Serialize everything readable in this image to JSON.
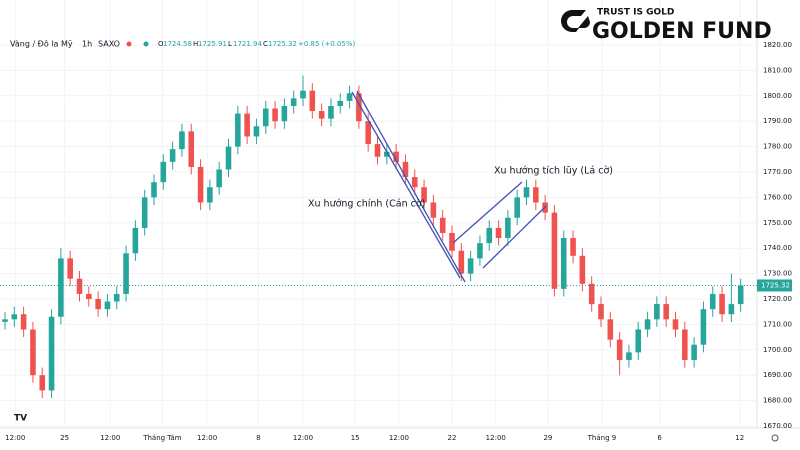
{
  "header": {
    "symbol": "Vàng / Đô la Mỹ",
    "interval": "1h",
    "source": "SAXO",
    "ohlc_labels": [
      "O",
      "H",
      "L",
      "C"
    ],
    "ohlc_values": [
      1724.58,
      1725.91,
      1721.94,
      1725.32
    ],
    "change": "+0.85 (+0.05%)"
  },
  "logo": {
    "tagline": "TRUST IS GOLD",
    "name": "GOLDEN FUND"
  },
  "chart_data": {
    "type": "candlestick",
    "annotations": [
      "Xu hướng chính (Cán cờ)",
      "Xu hướng tích lũy (Lá cờ)"
    ],
    "last_price": 1725.32,
    "up_color": "#26a69a",
    "down_color": "#ef5350",
    "grid": true,
    "xlim": [
      0,
      80
    ],
    "xticks": [
      {
        "value": 1.1,
        "label": "12:00"
      },
      {
        "value": 6.4,
        "label": "25"
      },
      {
        "value": 11.3,
        "label": "12:00"
      },
      {
        "value": 16.9,
        "label": "Tháng Tám"
      },
      {
        "value": 21.7,
        "label": "12:00"
      },
      {
        "value": 27.2,
        "label": "8"
      },
      {
        "value": 32,
        "label": "12:00"
      },
      {
        "value": 37.6,
        "label": "15"
      },
      {
        "value": 42.3,
        "label": "12:00"
      },
      {
        "value": 48,
        "label": "22"
      },
      {
        "value": 52.7,
        "label": "12:00"
      },
      {
        "value": 58.3,
        "label": "29"
      },
      {
        "value": 64.1,
        "label": "Tháng 9"
      },
      {
        "value": 70.3,
        "label": "6"
      },
      {
        "value": 78.9,
        "label": "12"
      }
    ],
    "ylim": [
      1670,
      1820
    ],
    "yticks": [
      {
        "value": 1670,
        "label": "1670.00"
      },
      {
        "value": 1680,
        "label": "1680.00"
      },
      {
        "value": 1690,
        "label": "1690.00"
      },
      {
        "value": 1700,
        "label": "1700.00"
      },
      {
        "value": 1710,
        "label": "1710.00"
      },
      {
        "value": 1720,
        "label": "1720.00"
      },
      {
        "value": 1730,
        "label": "1730.00"
      },
      {
        "value": 1740,
        "label": "1740.00"
      },
      {
        "value": 1750,
        "label": "1750.00"
      },
      {
        "value": 1760,
        "label": "1760.00"
      },
      {
        "value": 1770,
        "label": "1770.00"
      },
      {
        "value": 1780,
        "label": "1780.00"
      },
      {
        "value": 1790,
        "label": "1790.00"
      },
      {
        "value": 1800,
        "label": "1800.00"
      },
      {
        "value": 1810,
        "label": "1810.00"
      },
      {
        "value": 1820,
        "label": "1820.00"
      }
    ],
    "open": [
      1711,
      1712,
      1714,
      1708,
      1690,
      1684,
      1713,
      1736,
      1728,
      1722,
      1720,
      1716,
      1719,
      1722,
      1738,
      1748,
      1760,
      1766,
      1774,
      1779,
      1786,
      1772,
      1758,
      1764,
      1771,
      1780,
      1793,
      1784,
      1788,
      1795,
      1790,
      1796,
      1799,
      1802,
      1794,
      1791,
      1796,
      1798,
      1801,
      1790,
      1781,
      1776,
      1778,
      1774,
      1768,
      1764,
      1758,
      1752,
      1746,
      1739,
      1730,
      1736,
      1742,
      1748,
      1744,
      1752,
      1760,
      1764,
      1758,
      1754,
      1724,
      1744,
      1737,
      1726,
      1718,
      1712,
      1704,
      1696,
      1699,
      1708,
      1712,
      1718,
      1712,
      1708,
      1696,
      1702,
      1716,
      1722,
      1714,
      1718
    ],
    "high": [
      1715,
      1717,
      1717,
      1711,
      1693,
      1716,
      1740,
      1739,
      1731,
      1725,
      1723,
      1722,
      1725,
      1741,
      1751,
      1763,
      1769,
      1777,
      1782,
      1789,
      1789,
      1775,
      1767,
      1774,
      1783,
      1796,
      1796,
      1791,
      1798,
      1798,
      1799,
      1802,
      1808,
      1805,
      1797,
      1799,
      1801,
      1804,
      1804,
      1793,
      1784,
      1781,
      1781,
      1777,
      1771,
      1767,
      1761,
      1755,
      1749,
      1742,
      1739,
      1745,
      1751,
      1751,
      1755,
      1763,
      1767,
      1767,
      1761,
      1757,
      1747,
      1747,
      1740,
      1729,
      1721,
      1715,
      1707,
      1702,
      1711,
      1715,
      1721,
      1721,
      1715,
      1711,
      1705,
      1719,
      1725,
      1725,
      1730,
      1728
    ],
    "low": [
      1708,
      1709,
      1705,
      1687,
      1681,
      1681,
      1710,
      1725,
      1719,
      1717,
      1713,
      1713,
      1716,
      1719,
      1735,
      1745,
      1757,
      1763,
      1771,
      1776,
      1769,
      1755,
      1755,
      1761,
      1768,
      1777,
      1781,
      1781,
      1785,
      1787,
      1787,
      1793,
      1796,
      1791,
      1788,
      1788,
      1793,
      1795,
      1787,
      1778,
      1773,
      1773,
      1771,
      1765,
      1761,
      1755,
      1749,
      1743,
      1736,
      1727,
      1727,
      1733,
      1739,
      1741,
      1741,
      1749,
      1757,
      1755,
      1751,
      1721,
      1721,
      1734,
      1723,
      1715,
      1709,
      1701,
      1690,
      1693,
      1696,
      1705,
      1709,
      1709,
      1705,
      1693,
      1693,
      1699,
      1713,
      1711,
      1711,
      1715
    ],
    "close": [
      1712,
      1714,
      1708,
      1690,
      1684,
      1713,
      1736,
      1728,
      1722,
      1720,
      1716,
      1719,
      1722,
      1738,
      1748,
      1760,
      1766,
      1774,
      1779,
      1786,
      1772,
      1758,
      1764,
      1771,
      1780,
      1793,
      1784,
      1788,
      1795,
      1790,
      1796,
      1799,
      1802,
      1794,
      1791,
      1796,
      1798,
      1801,
      1790,
      1781,
      1776,
      1778,
      1774,
      1768,
      1764,
      1758,
      1752,
      1746,
      1739,
      1730,
      1736,
      1742,
      1748,
      1744,
      1752,
      1760,
      1764,
      1758,
      1754,
      1724,
      1744,
      1737,
      1726,
      1718,
      1712,
      1704,
      1696,
      1699,
      1708,
      1712,
      1718,
      1712,
      1708,
      1696,
      1702,
      1716,
      1722,
      1714,
      1718,
      1725.32
    ]
  }
}
